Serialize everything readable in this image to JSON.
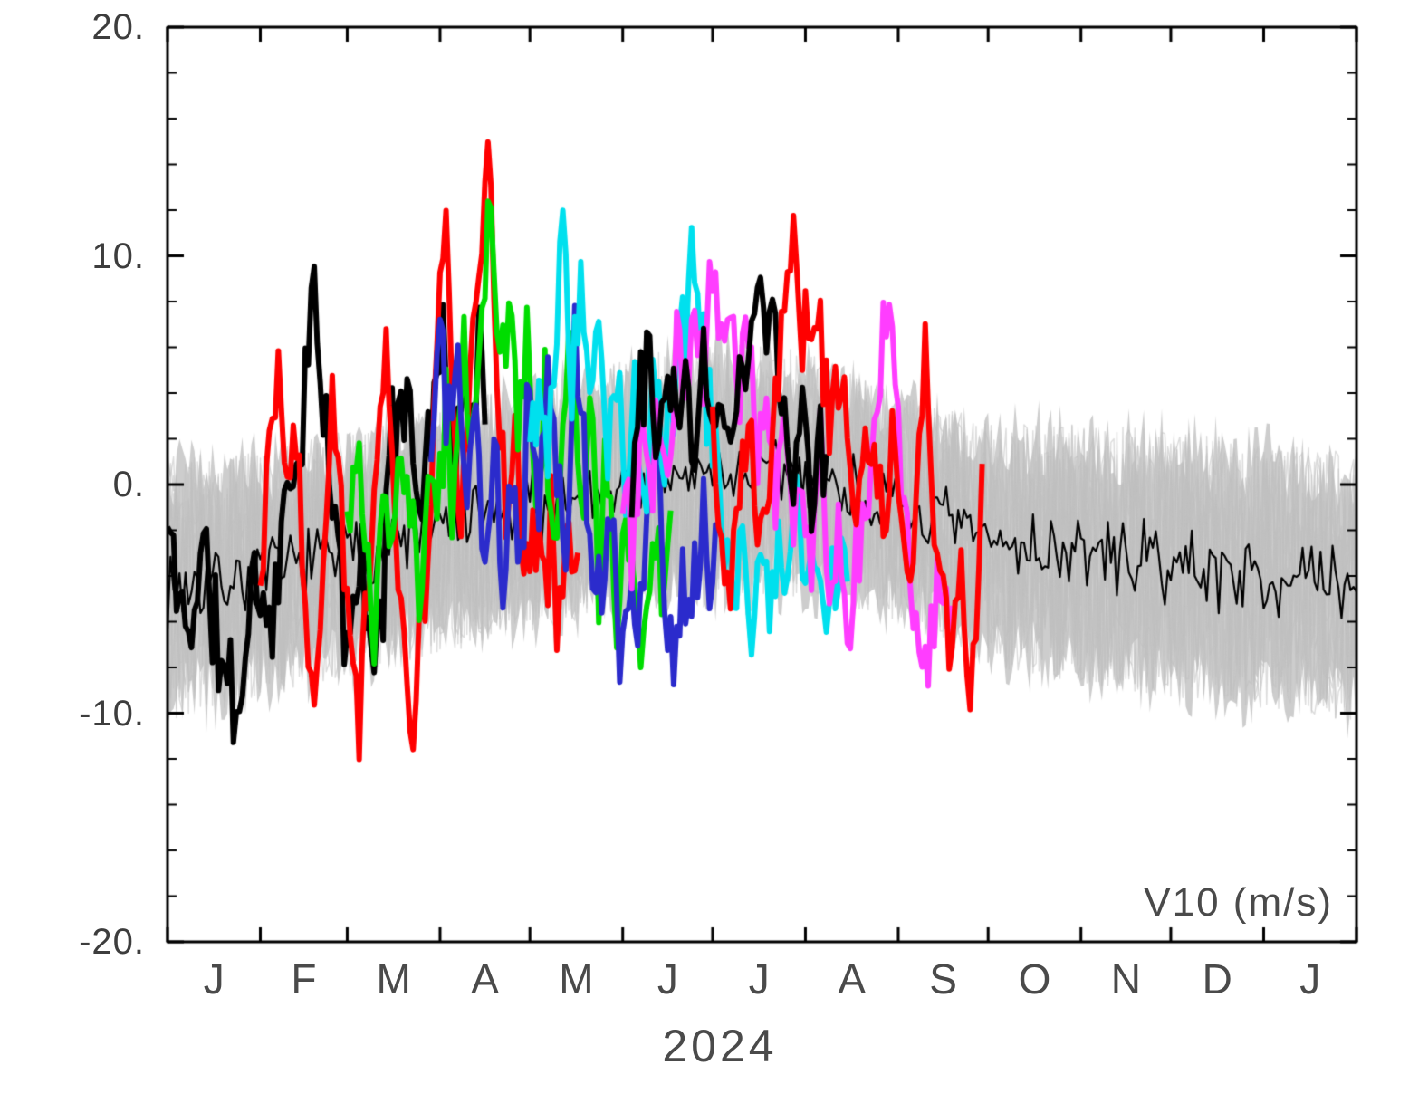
{
  "chart_data": {
    "type": "line",
    "title": "",
    "xlabel": "2024",
    "annotation": "V10 (m/s)",
    "ylim": [
      -20,
      20
    ],
    "grid": false,
    "legend": "none",
    "y_ticks": [
      {
        "value": 20,
        "label": "20."
      },
      {
        "value": 10,
        "label": "10."
      },
      {
        "value": 0,
        "label": "0."
      },
      {
        "value": -10,
        "label": "-10."
      },
      {
        "value": -20,
        "label": "-20."
      }
    ],
    "y_minor_tick_step": 2,
    "x_range_days": [
      0,
      397
    ],
    "month_boundaries": [
      0,
      31,
      60,
      91,
      121,
      152,
      182,
      213,
      244,
      274,
      305,
      335,
      366,
      397
    ],
    "x_tick_labels": [
      "J",
      "F",
      "M",
      "A",
      "M",
      "J",
      "J",
      "A",
      "S",
      "O",
      "N",
      "D",
      "J"
    ],
    "envelope": {
      "name": "ensemble-spread-band",
      "color": "#cdcdcd",
      "texture_color": "#bfbfbf",
      "seed": 5,
      "mean_anchors": [
        [
          0,
          -4.5
        ],
        [
          31,
          -4
        ],
        [
          60,
          -3
        ],
        [
          91,
          -2
        ],
        [
          121,
          -1
        ],
        [
          152,
          0
        ],
        [
          182,
          0.5
        ],
        [
          213,
          0.5
        ],
        [
          244,
          -1
        ],
        [
          274,
          -2.5
        ],
        [
          305,
          -3
        ],
        [
          335,
          -3.5
        ],
        [
          366,
          -4
        ],
        [
          397,
          -4.5
        ]
      ],
      "half_width_anchors": [
        [
          0,
          6.5
        ],
        [
          31,
          6
        ],
        [
          60,
          6
        ],
        [
          91,
          6
        ],
        [
          121,
          6
        ],
        [
          152,
          6.2
        ],
        [
          182,
          6.5
        ],
        [
          213,
          6
        ],
        [
          244,
          5.5
        ],
        [
          274,
          6
        ],
        [
          305,
          6.3
        ],
        [
          335,
          6.5
        ],
        [
          366,
          6.5
        ],
        [
          397,
          6.5
        ]
      ]
    },
    "climatology": {
      "name": "climatology-mean-line",
      "color": "#000000",
      "width": 2.2,
      "seed": 7,
      "noise_sigma": 1.3,
      "anchors": [
        [
          0,
          -4.5
        ],
        [
          31,
          -4
        ],
        [
          60,
          -3
        ],
        [
          91,
          -2
        ],
        [
          121,
          -1
        ],
        [
          152,
          0
        ],
        [
          182,
          0.5
        ],
        [
          213,
          0.5
        ],
        [
          244,
          -1
        ],
        [
          274,
          -2.5
        ],
        [
          305,
          -3
        ],
        [
          335,
          -3.5
        ],
        [
          366,
          -4
        ],
        [
          397,
          -4.5
        ]
      ]
    },
    "forecasts": [
      {
        "name": "forecast-black-1",
        "color": "#000000",
        "width": 6,
        "seed": 11,
        "noise_sigma": 2.2,
        "anchors": [
          [
            0,
            -2
          ],
          [
            6,
            -6.5
          ],
          [
            12,
            -3
          ],
          [
            18,
            -8
          ],
          [
            24,
            -10
          ],
          [
            28,
            -4
          ],
          [
            34,
            -6
          ],
          [
            40,
            -1
          ],
          [
            44,
            2
          ],
          [
            48,
            8
          ],
          [
            52,
            3
          ],
          [
            56,
            -2
          ],
          [
            60,
            -7
          ],
          [
            64,
            -3
          ],
          [
            68,
            -8
          ],
          [
            72,
            -4
          ],
          [
            76,
            3
          ],
          [
            80,
            5.5
          ],
          [
            84,
            -2
          ],
          [
            88,
            4
          ],
          [
            92,
            6
          ],
          [
            96,
            1
          ],
          [
            100,
            3.5
          ],
          [
            104,
            5
          ],
          [
            106,
            4
          ]
        ]
      },
      {
        "name": "forecast-red-1",
        "color": "#ff0000",
        "width": 6,
        "seed": 22,
        "noise_sigma": 2.0,
        "anchors": [
          [
            31,
            -4
          ],
          [
            34,
            2
          ],
          [
            37,
            6.8
          ],
          [
            40,
            -1
          ],
          [
            43,
            4
          ],
          [
            46,
            -5
          ],
          [
            49,
            -8
          ],
          [
            52,
            -3
          ],
          [
            55,
            4.5
          ],
          [
            58,
            -1
          ],
          [
            61,
            -7
          ],
          [
            64,
            -9.5
          ],
          [
            67,
            -4
          ],
          [
            70,
            2
          ],
          [
            73,
            6.5
          ],
          [
            76,
            -2
          ],
          [
            79,
            -8
          ],
          [
            82,
            -10.5
          ],
          [
            85,
            -5
          ],
          [
            88,
            -1
          ],
          [
            91,
            8
          ],
          [
            93,
            12.5
          ],
          [
            95,
            3
          ],
          [
            98,
            -2
          ],
          [
            101,
            4
          ],
          [
            104,
            9
          ],
          [
            107,
            15.2
          ],
          [
            110,
            6
          ],
          [
            113,
            -1
          ],
          [
            116,
            3
          ],
          [
            119,
            -3
          ],
          [
            122,
            -1
          ],
          [
            125,
            -4
          ],
          [
            128,
            -2
          ],
          [
            131,
            -6
          ],
          [
            134,
            -3
          ],
          [
            137,
            -5
          ]
        ]
      },
      {
        "name": "forecast-green",
        "color": "#00dd00",
        "width": 6,
        "seed": 33,
        "noise_sigma": 1.9,
        "anchors": [
          [
            60,
            -2
          ],
          [
            63,
            1
          ],
          [
            66,
            -3
          ],
          [
            69,
            -6
          ],
          [
            72,
            -1
          ],
          [
            75,
            -4
          ],
          [
            78,
            2
          ],
          [
            81,
            -2
          ],
          [
            84,
            -5
          ],
          [
            87,
            1
          ],
          [
            90,
            -3
          ],
          [
            93,
            3
          ],
          [
            96,
            -1
          ],
          [
            99,
            5
          ],
          [
            102,
            2
          ],
          [
            105,
            8
          ],
          [
            108,
            11.5
          ],
          [
            111,
            4
          ],
          [
            114,
            9
          ],
          [
            117,
            3
          ],
          [
            120,
            6
          ],
          [
            123,
            -1
          ],
          [
            126,
            4
          ],
          [
            129,
            -3
          ],
          [
            132,
            2
          ],
          [
            135,
            7
          ],
          [
            138,
            -2
          ],
          [
            141,
            4
          ],
          [
            144,
            -4
          ],
          [
            147,
            2
          ],
          [
            150,
            -7
          ],
          [
            153,
            -1
          ],
          [
            156,
            -5
          ],
          [
            159,
            -8
          ],
          [
            162,
            -2
          ],
          [
            165,
            -4
          ],
          [
            168,
            -3
          ]
        ]
      },
      {
        "name": "forecast-blue",
        "color": "#2b2bcc",
        "width": 6,
        "seed": 44,
        "noise_sigma": 1.9,
        "anchors": [
          [
            88,
            1
          ],
          [
            91,
            7.5
          ],
          [
            94,
            2
          ],
          [
            97,
            6
          ],
          [
            100,
            -2
          ],
          [
            103,
            5
          ],
          [
            106,
            -4
          ],
          [
            109,
            2
          ],
          [
            112,
            -6
          ],
          [
            115,
            1
          ],
          [
            118,
            -3
          ],
          [
            121,
            4
          ],
          [
            124,
            -2
          ],
          [
            127,
            6
          ],
          [
            130,
            1
          ],
          [
            133,
            -4
          ],
          [
            136,
            6.5
          ],
          [
            139,
            2
          ],
          [
            142,
            -3
          ],
          [
            145,
            -6
          ],
          [
            148,
            -1
          ],
          [
            151,
            -8
          ],
          [
            154,
            -4
          ],
          [
            157,
            -7
          ],
          [
            160,
            -2
          ],
          [
            163,
            3
          ],
          [
            166,
            -5
          ],
          [
            169,
            -8.5
          ],
          [
            172,
            -3
          ],
          [
            175,
            -6
          ],
          [
            178,
            -1
          ],
          [
            181,
            -4
          ],
          [
            184,
            -2
          ]
        ]
      },
      {
        "name": "forecast-cyan",
        "color": "#00e0ee",
        "width": 6,
        "seed": 55,
        "noise_sigma": 1.8,
        "anchors": [
          [
            121,
            1
          ],
          [
            124,
            5
          ],
          [
            127,
            2
          ],
          [
            130,
            8
          ],
          [
            132,
            12.2
          ],
          [
            135,
            5
          ],
          [
            138,
            9
          ],
          [
            141,
            3
          ],
          [
            144,
            7
          ],
          [
            147,
            1
          ],
          [
            150,
            6
          ],
          [
            153,
            0
          ],
          [
            156,
            4
          ],
          [
            159,
            -2
          ],
          [
            162,
            5
          ],
          [
            165,
            1
          ],
          [
            168,
            3
          ],
          [
            171,
            6
          ],
          [
            174,
            9
          ],
          [
            177,
            10.3
          ],
          [
            180,
            4
          ],
          [
            183,
            1
          ],
          [
            186,
            -3
          ],
          [
            189,
            -5.5
          ],
          [
            192,
            -2
          ],
          [
            195,
            -6
          ],
          [
            198,
            -3
          ],
          [
            201,
            -6.5
          ],
          [
            204,
            -2
          ],
          [
            207,
            -5
          ],
          [
            210,
            -1
          ],
          [
            213,
            -4
          ],
          [
            216,
            -2
          ],
          [
            219,
            -5
          ],
          [
            222,
            -3
          ],
          [
            227,
            -4
          ]
        ]
      },
      {
        "name": "forecast-magenta",
        "color": "#ff3dff",
        "width": 6,
        "seed": 66,
        "noise_sigma": 1.8,
        "anchors": [
          [
            152,
            1
          ],
          [
            155,
            -2
          ],
          [
            158,
            3
          ],
          [
            161,
            -1
          ],
          [
            164,
            4
          ],
          [
            167,
            1
          ],
          [
            170,
            6
          ],
          [
            173,
            3
          ],
          [
            176,
            8
          ],
          [
            179,
            5
          ],
          [
            182,
            9
          ],
          [
            185,
            6
          ],
          [
            188,
            9.8
          ],
          [
            191,
            4
          ],
          [
            194,
            7
          ],
          [
            197,
            2
          ],
          [
            200,
            5
          ],
          [
            203,
            0
          ],
          [
            206,
            4
          ],
          [
            209,
            -2
          ],
          [
            212,
            1
          ],
          [
            215,
            -4
          ],
          [
            218,
            2
          ],
          [
            221,
            -5
          ],
          [
            224,
            -3
          ],
          [
            227,
            -6.5
          ],
          [
            230,
            -4
          ],
          [
            233,
            -1
          ],
          [
            236,
            3
          ],
          [
            239,
            6
          ],
          [
            242,
            7
          ],
          [
            245,
            1
          ],
          [
            248,
            -4
          ],
          [
            251,
            -6
          ],
          [
            254,
            -7.5
          ],
          [
            257,
            -4
          ],
          [
            260,
            -6
          ],
          [
            262,
            -5
          ]
        ]
      },
      {
        "name": "forecast-black-2",
        "color": "#000000",
        "width": 6,
        "seed": 77,
        "noise_sigma": 1.8,
        "anchors": [
          [
            155,
            0
          ],
          [
            158,
            4
          ],
          [
            161,
            6
          ],
          [
            164,
            2
          ],
          [
            167,
            6.5
          ],
          [
            170,
            3
          ],
          [
            173,
            5
          ],
          [
            176,
            1
          ],
          [
            179,
            6
          ],
          [
            182,
            2
          ],
          [
            185,
            4
          ],
          [
            188,
            1
          ],
          [
            191,
            5
          ],
          [
            194,
            7
          ],
          [
            197,
            9.5
          ],
          [
            200,
            6
          ],
          [
            203,
            8
          ],
          [
            206,
            3
          ],
          [
            209,
            1
          ],
          [
            212,
            3
          ],
          [
            215,
            0
          ],
          [
            218,
            2
          ],
          [
            220,
            1
          ]
        ]
      },
      {
        "name": "forecast-red-2",
        "color": "#ff0000",
        "width": 6,
        "seed": 88,
        "noise_sigma": 1.8,
        "anchors": [
          [
            182,
            2
          ],
          [
            185,
            -2
          ],
          [
            188,
            -5
          ],
          [
            191,
            1
          ],
          [
            194,
            3
          ],
          [
            197,
            -3
          ],
          [
            200,
            -1
          ],
          [
            203,
            4
          ],
          [
            206,
            7
          ],
          [
            209,
            11
          ],
          [
            212,
            6
          ],
          [
            215,
            8
          ],
          [
            218,
            7
          ],
          [
            221,
            3
          ],
          [
            224,
            5
          ],
          [
            227,
            1
          ],
          [
            230,
            -1
          ],
          [
            233,
            3
          ],
          [
            236,
            0
          ],
          [
            239,
            -2
          ],
          [
            242,
            2
          ],
          [
            245,
            -1
          ],
          [
            248,
            -6
          ],
          [
            251,
            2
          ],
          [
            253,
            5.5
          ],
          [
            256,
            -2
          ],
          [
            259,
            -5
          ],
          [
            262,
            -7
          ],
          [
            265,
            -3
          ],
          [
            268,
            -9.5
          ],
          [
            270,
            -5
          ],
          [
            272,
            -1
          ]
        ]
      }
    ]
  }
}
